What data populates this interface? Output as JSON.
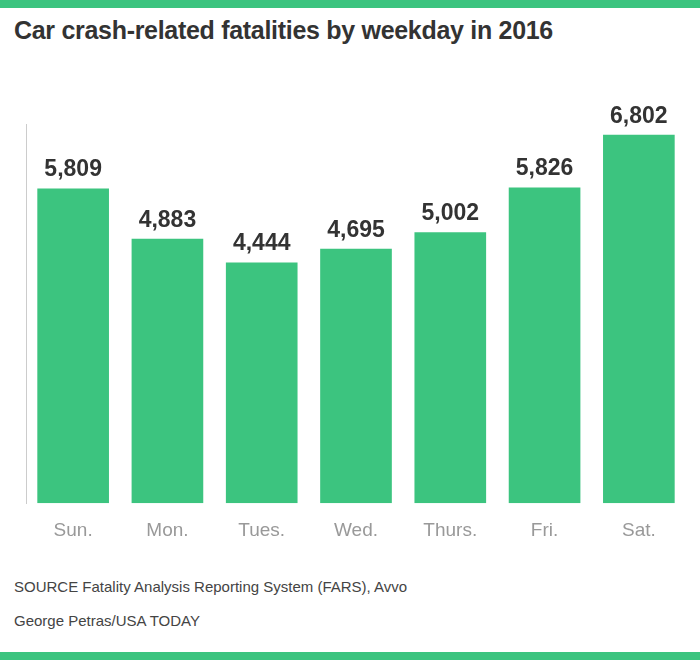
{
  "chart_data": {
    "type": "bar",
    "title": "Car crash-related fatalities by weekday in 2016",
    "categories": [
      "Sun.",
      "Mon.",
      "Tues.",
      "Wed.",
      "Thurs.",
      "Fri.",
      "Sat."
    ],
    "values": [
      5809,
      4883,
      4444,
      4695,
      5002,
      5826,
      6802
    ],
    "value_labels": [
      "5,809",
      "4,883",
      "4,444",
      "4,695",
      "5,002",
      "5,826",
      "6,802"
    ],
    "color": "#3cc47f",
    "ylim": [
      0,
      7000
    ],
    "grid": false,
    "data_labels": true,
    "tick_labels": "x",
    "source": "SOURCE Fatality Analysis Reporting System (FARS), Avvo",
    "credit": "George Petras/USA TODAY"
  }
}
